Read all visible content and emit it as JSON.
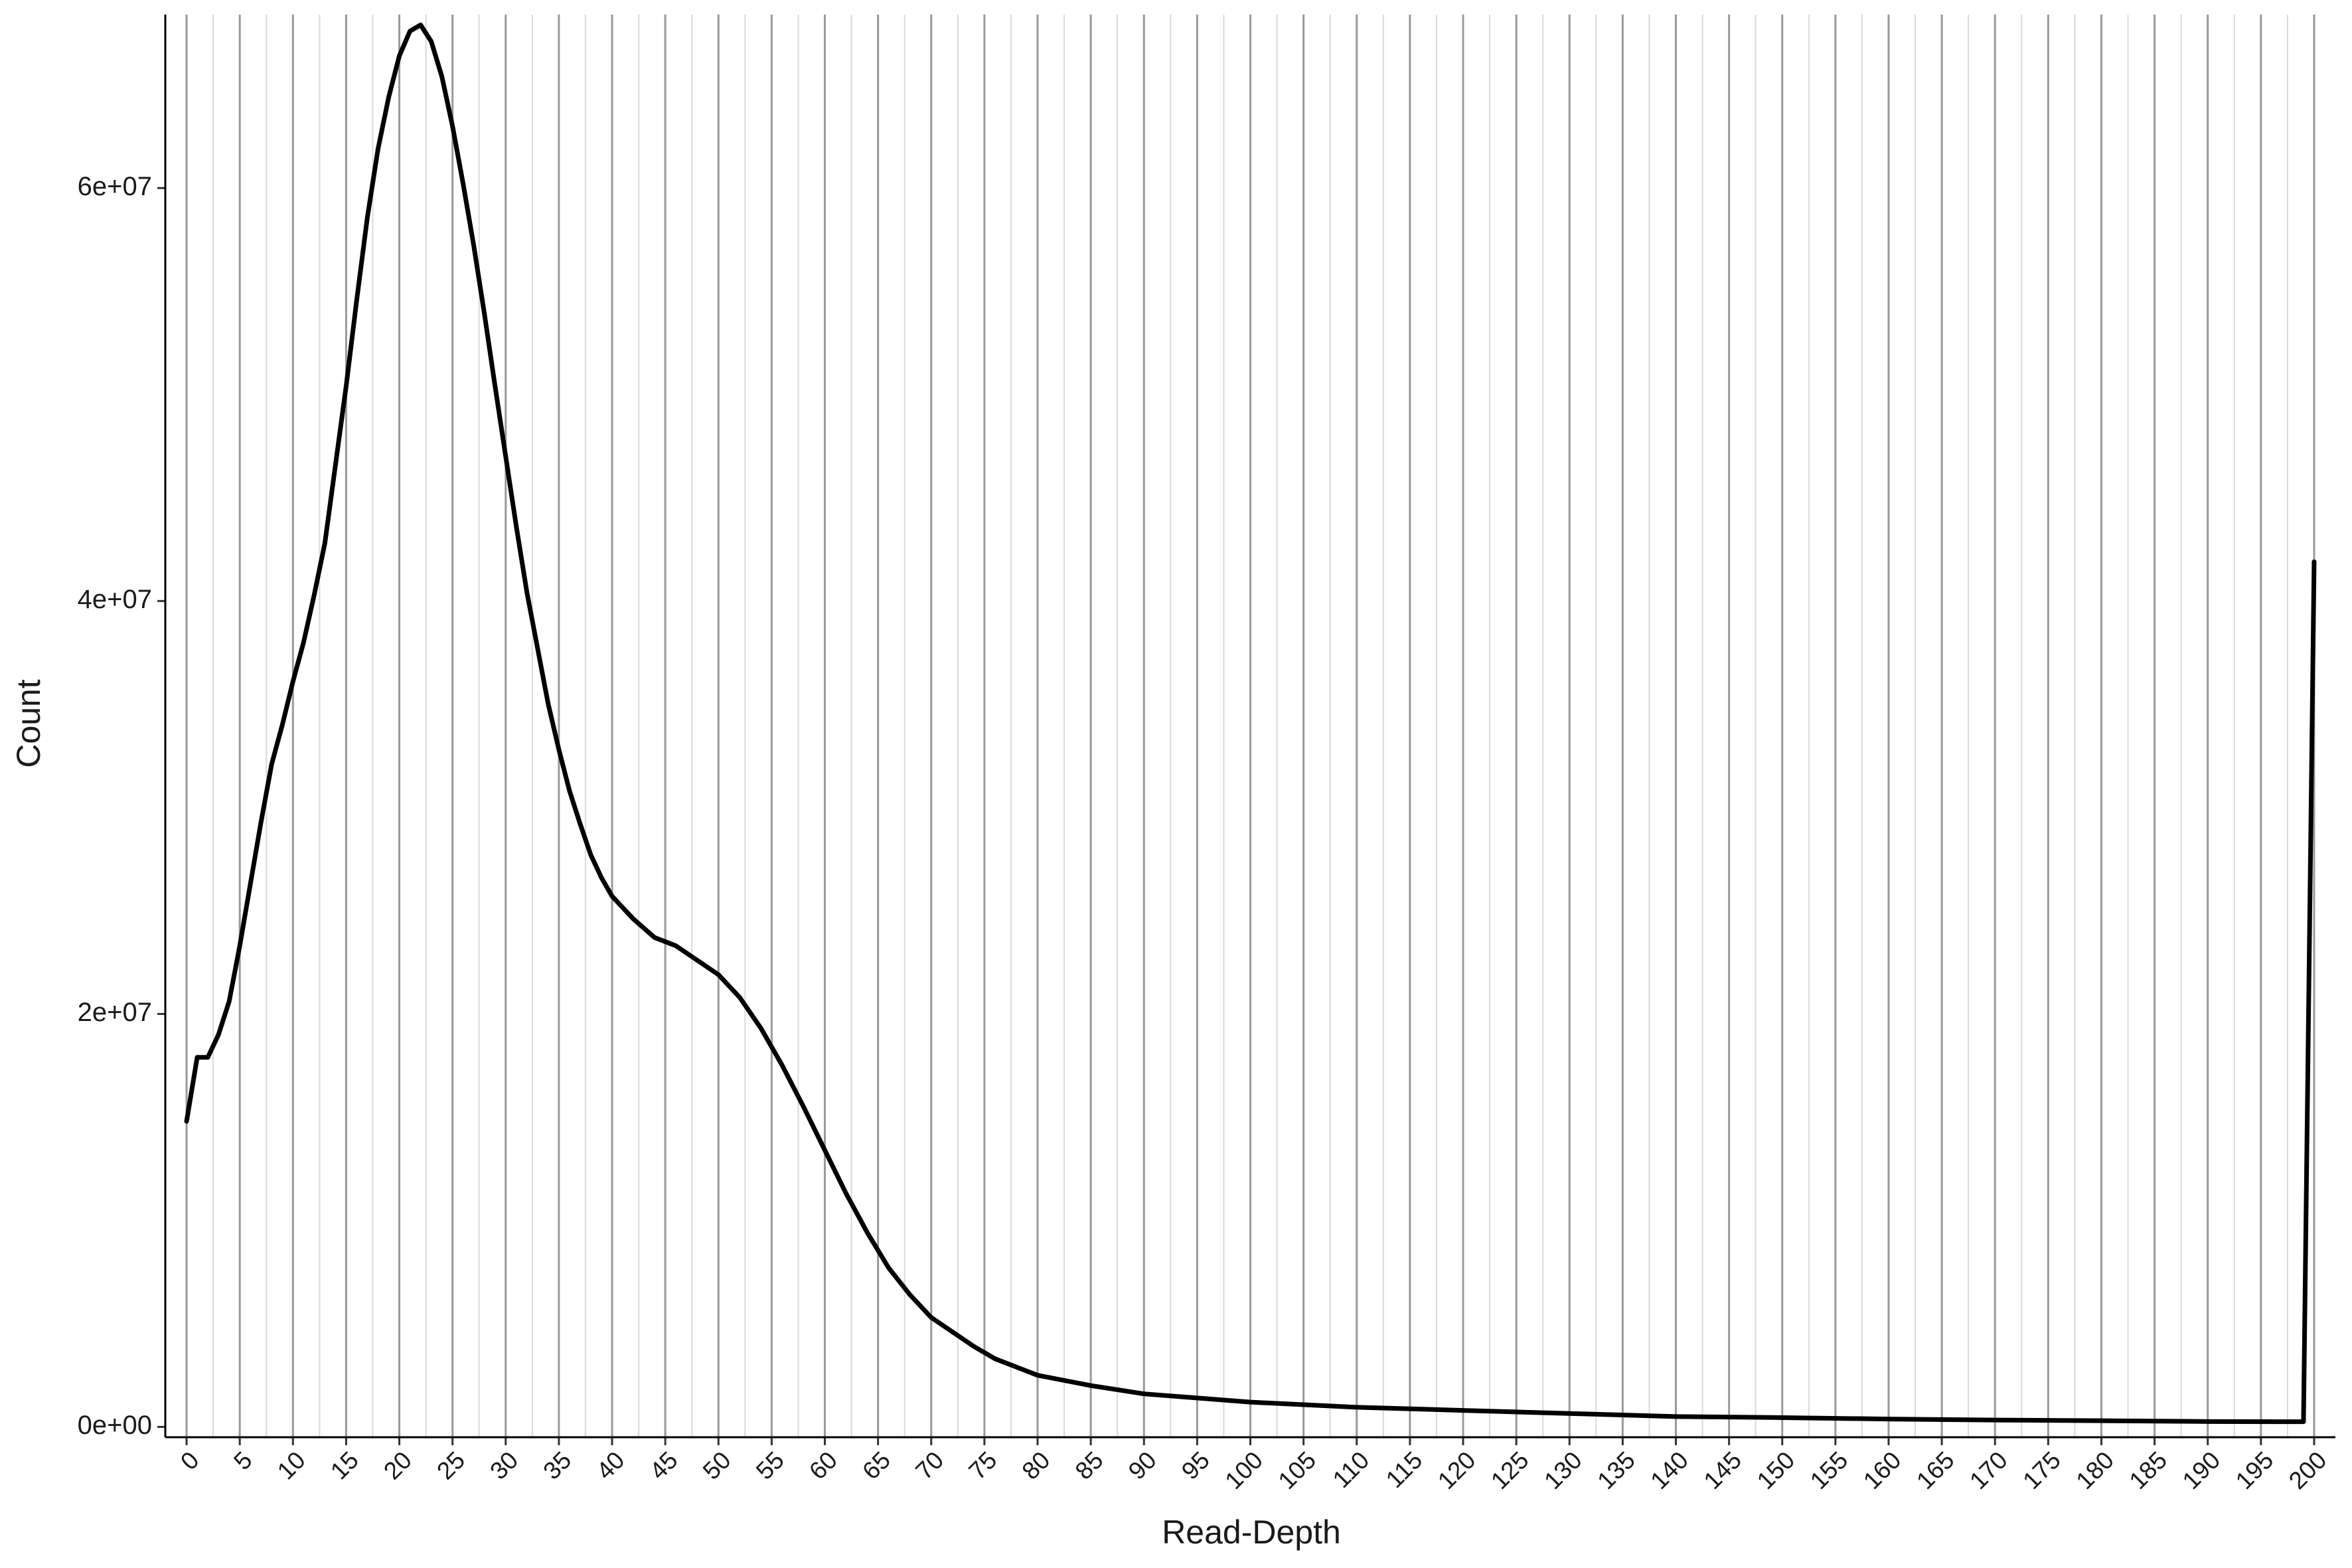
{
  "chart_data": {
    "type": "line",
    "x_label": "Read-Depth",
    "y_label": "Count",
    "x": [
      0,
      1,
      2,
      3,
      4,
      5,
      6,
      7,
      8,
      9,
      10,
      11,
      12,
      13,
      14,
      15,
      16,
      17,
      18,
      19,
      20,
      21,
      22,
      23,
      24,
      25,
      26,
      27,
      28,
      29,
      30,
      31,
      32,
      33,
      34,
      35,
      36,
      37,
      38,
      39,
      40,
      42,
      44,
      46,
      48,
      50,
      52,
      54,
      56,
      58,
      60,
      62,
      64,
      66,
      68,
      70,
      72,
      74,
      76,
      78,
      80,
      85,
      90,
      95,
      100,
      110,
      120,
      130,
      140,
      150,
      160,
      170,
      180,
      190,
      199,
      200
    ],
    "values": [
      14800000,
      17900000,
      17900000,
      19000000,
      20600000,
      23300000,
      26300000,
      29300000,
      32100000,
      34000000,
      36100000,
      38000000,
      40300000,
      42800000,
      46600000,
      50400000,
      54600000,
      58600000,
      61900000,
      64400000,
      66400000,
      67600000,
      67900000,
      67100000,
      65400000,
      63000000,
      60200000,
      57200000,
      53900000,
      50400000,
      47000000,
      43600000,
      40400000,
      37700000,
      35000000,
      32800000,
      30800000,
      29200000,
      27700000,
      26600000,
      25700000,
      24600000,
      23700000,
      23300000,
      22600000,
      21900000,
      20800000,
      19300000,
      17500000,
      15500000,
      13400000,
      11300000,
      9400000,
      7700000,
      6400000,
      5300000,
      4600000,
      3900000,
      3300000,
      2900000,
      2500000,
      2000000,
      1600000,
      1400000,
      1200000,
      950000,
      800000,
      650000,
      500000,
      450000,
      380000,
      330000,
      300000,
      260000,
      250000,
      41900000
    ],
    "color": "#000000",
    "xlim": [
      -2,
      202
    ],
    "ylim": [
      -500000,
      68400000
    ],
    "xticks": [
      0,
      5,
      10,
      15,
      20,
      25,
      30,
      35,
      40,
      45,
      50,
      55,
      60,
      65,
      70,
      75,
      80,
      85,
      90,
      95,
      100,
      105,
      110,
      115,
      120,
      125,
      130,
      135,
      140,
      145,
      150,
      155,
      160,
      165,
      170,
      175,
      180,
      185,
      190,
      195,
      200
    ],
    "yticks": [
      {
        "value": 0,
        "label": "0e+00"
      },
      {
        "value": 20000000,
        "label": "2e+07"
      },
      {
        "value": 40000000,
        "label": "4e+07"
      },
      {
        "value": 60000000,
        "label": "6e+07"
      }
    ],
    "grid": true,
    "minor_grid": true
  }
}
